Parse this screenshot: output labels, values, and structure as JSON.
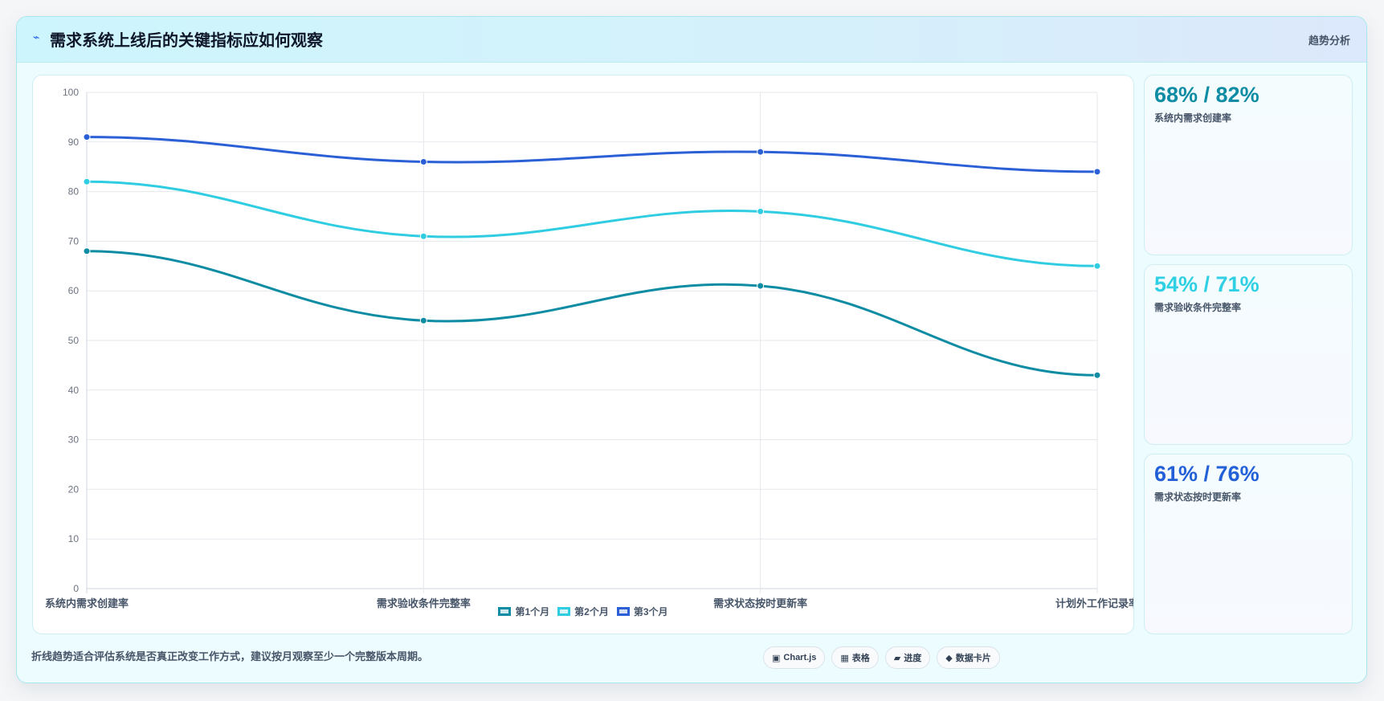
{
  "header": {
    "icon": "bolt-icon",
    "title": "需求系统上线后的关键指标应如何观察",
    "tag": "趋势分析"
  },
  "chart_data": {
    "type": "line",
    "categories": [
      "系统内需求创建率",
      "需求验收条件完整率",
      "需求状态按时更新率",
      "计划外工作记录率"
    ],
    "ylim": [
      0,
      100
    ],
    "yticks": [
      0,
      10,
      20,
      30,
      40,
      50,
      60,
      70,
      80,
      90,
      100
    ],
    "grid": true,
    "legend_position": "bottom",
    "series": [
      {
        "name": "第1个月",
        "values": [
          68,
          54,
          61,
          43
        ],
        "color": "#0e8ca4"
      },
      {
        "name": "第2个月",
        "values": [
          82,
          71,
          76,
          65
        ],
        "color": "#30cde2"
      },
      {
        "name": "第3个月",
        "values": [
          91,
          86,
          88,
          84
        ],
        "color": "#2b5fd6"
      }
    ]
  },
  "stats": [
    {
      "value": "68% / 82%",
      "label": "系统内需求创建率",
      "color": "#0e8ca4"
    },
    {
      "value": "54% / 71%",
      "label": "需求验收条件完整率",
      "color": "#2fd0e4"
    },
    {
      "value": "61% / 76%",
      "label": "需求状态按时更新率",
      "color": "#2360d8"
    }
  ],
  "footer": {
    "note": "折线趋势适合评估系统是否真正改变工作方式，建议按月观察至少一个完整版本周期。",
    "pills": [
      {
        "icon": "▣",
        "label": "Chart.js"
      },
      {
        "icon": "▦",
        "label": "表格"
      },
      {
        "icon": "▰",
        "label": "进度"
      },
      {
        "icon": "◆",
        "label": "数据卡片"
      }
    ]
  }
}
